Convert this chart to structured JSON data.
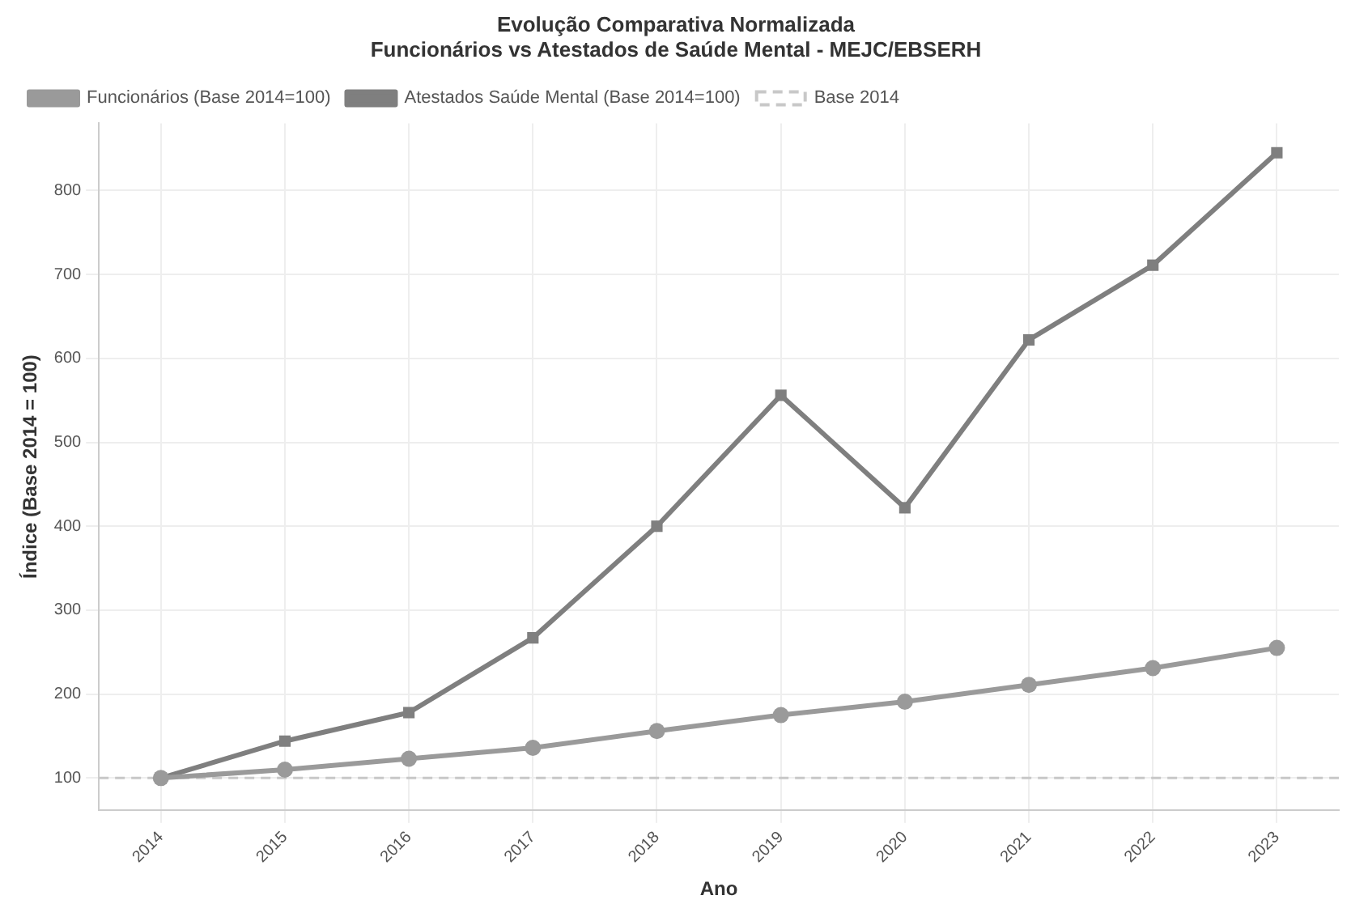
{
  "chart_data": {
    "type": "line",
    "title": "Evolução Comparativa Normalizada\nFuncionários vs Atestados de Saúde Mental - MEJC/EBSERH",
    "xlabel": "Ano",
    "ylabel": "Índice (Base 2014 = 100)",
    "categories": [
      "2014",
      "2015",
      "2016",
      "2017",
      "2018",
      "2019",
      "2020",
      "2021",
      "2022",
      "2023"
    ],
    "series": [
      {
        "name": "Funcionários (Base 2014=100)",
        "color": "#9a9a9a",
        "marker": "circle",
        "values": [
          100,
          110,
          123,
          136,
          156,
          175,
          191,
          211,
          231,
          255
        ]
      },
      {
        "name": "Atestados Saúde Mental (Base 2014=100)",
        "color": "#7f7f7f",
        "marker": "square",
        "values": [
          100,
          144,
          178,
          267,
          400,
          556,
          422,
          622,
          711,
          845
        ]
      }
    ],
    "ref_lines": [
      {
        "axis": "y",
        "value": 100,
        "label": "Base 2014",
        "color": "#c8c8c8",
        "line_style": "dashed"
      }
    ],
    "ylim": [
      62,
      880
    ],
    "yticks": [
      100,
      200,
      300,
      400,
      500,
      600,
      700,
      800
    ],
    "grid": true,
    "legend": "top left"
  }
}
